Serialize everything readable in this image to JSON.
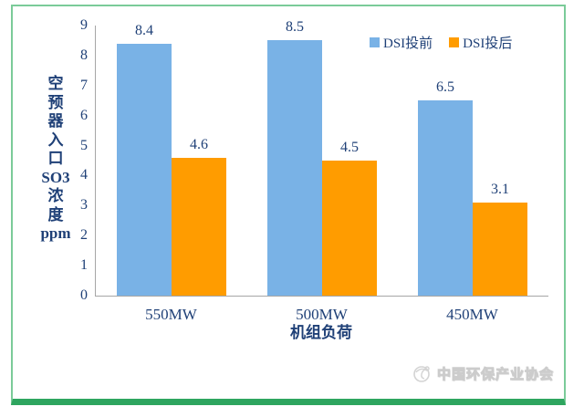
{
  "chart_data": {
    "type": "bar",
    "title": "",
    "categories": [
      "550MW",
      "500MW",
      "450MW"
    ],
    "series": [
      {
        "name": "DSI投前",
        "color": "#79b2e6",
        "values": [
          8.4,
          8.5,
          6.5
        ]
      },
      {
        "name": "DSI投后",
        "color": "#ff9c00",
        "values": [
          4.6,
          4.5,
          3.1
        ]
      }
    ],
    "xlabel": "机组负荷",
    "ylabel": "空预器入口SO3浓度ppm",
    "ylabel_segments": [
      "空",
      "预",
      "器",
      "入",
      "口",
      "SO3",
      "浓",
      "度",
      "ppm"
    ],
    "ylim": [
      0,
      9
    ],
    "yticks": [
      0,
      1,
      2,
      3,
      4,
      5,
      6,
      7,
      8,
      9
    ],
    "grid": false,
    "legend_position": "top-right-inside",
    "data_labels": true
  },
  "watermark": {
    "text": "中国环保产业协会",
    "logo": "association-logo"
  },
  "colors": {
    "text": "#1f4077",
    "axis_line": "#a6a6a6",
    "series_before": "#79b2e6",
    "series_after": "#ff9c00",
    "frame_border": "#7bcb99",
    "frame_bottom": "#2ea55f",
    "watermark_text": "#cccccc",
    "background": "#ffffff"
  }
}
